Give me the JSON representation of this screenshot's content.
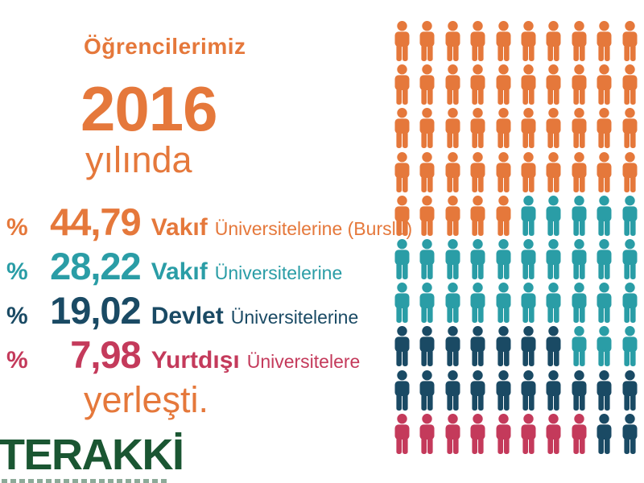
{
  "header": {
    "title": "Öğrencilerimiz",
    "year": "2016",
    "subtitle": "yılında",
    "accent_color": "#E5783B"
  },
  "stats": [
    {
      "pct": "%",
      "value": "44,79",
      "emphasis": "Vakıf",
      "detail": "Üniversitelerine (Burslu)",
      "color": "#E5783B"
    },
    {
      "pct": "%",
      "value": "28,22",
      "emphasis": "Vakıf",
      "detail": "Üniversitelerine",
      "color": "#2A9DA6"
    },
    {
      "pct": "%",
      "value": "19,02",
      "emphasis": "Devlet",
      "detail": "Üniversitelerine",
      "color": "#1A4A64"
    },
    {
      "pct": "%",
      "value": "7,98",
      "emphasis": "Yurtdışı",
      "detail": "Üniversitelere",
      "color": "#C43A5B"
    }
  ],
  "closing": "yerleşti.",
  "brand": {
    "logo_text": "TERAKKİ",
    "logo_color": "#1A5632"
  },
  "icons": {
    "unit_icon": "standing-person-pictogram"
  },
  "chart_data": {
    "type": "pictograph",
    "unit": "1 person icon = 1 percent of students",
    "grid": {
      "rows": 10,
      "cols": 10
    },
    "legend_position": "none",
    "series": [
      {
        "name": "Vakıf Üniversitelerine (Burslu)",
        "percent": 44.79,
        "icons": 45,
        "color": "#E5783B",
        "color_key": "O"
      },
      {
        "name": "Vakıf Üniversitelerine",
        "percent": 28.22,
        "icons": 28,
        "color": "#2A9DA6",
        "color_key": "T"
      },
      {
        "name": "Devlet Üniversitelerine",
        "percent": 19.02,
        "icons": 19,
        "color": "#1A4A64",
        "color_key": "N"
      },
      {
        "name": "Yurtdışı Üniversitelere",
        "percent": 7.98,
        "icons": 8,
        "color": "#C43A5B",
        "color_key": "C"
      }
    ],
    "colors": {
      "O": "#E5783B",
      "T": "#2A9DA6",
      "N": "#1A4A64",
      "C": "#C43A5B"
    },
    "rows": [
      "OOOOOOOOOO",
      "OOOOOOOOOO",
      "OOOOOOOOOO",
      "OOOOOOOOOO",
      "OOOOOTTTTT",
      "TTTTTTTTTT",
      "TTTTTTTTTT",
      "NNNNNNNTTT",
      "NNNNNNNNNN",
      "CCCCCCCCNN"
    ]
  }
}
